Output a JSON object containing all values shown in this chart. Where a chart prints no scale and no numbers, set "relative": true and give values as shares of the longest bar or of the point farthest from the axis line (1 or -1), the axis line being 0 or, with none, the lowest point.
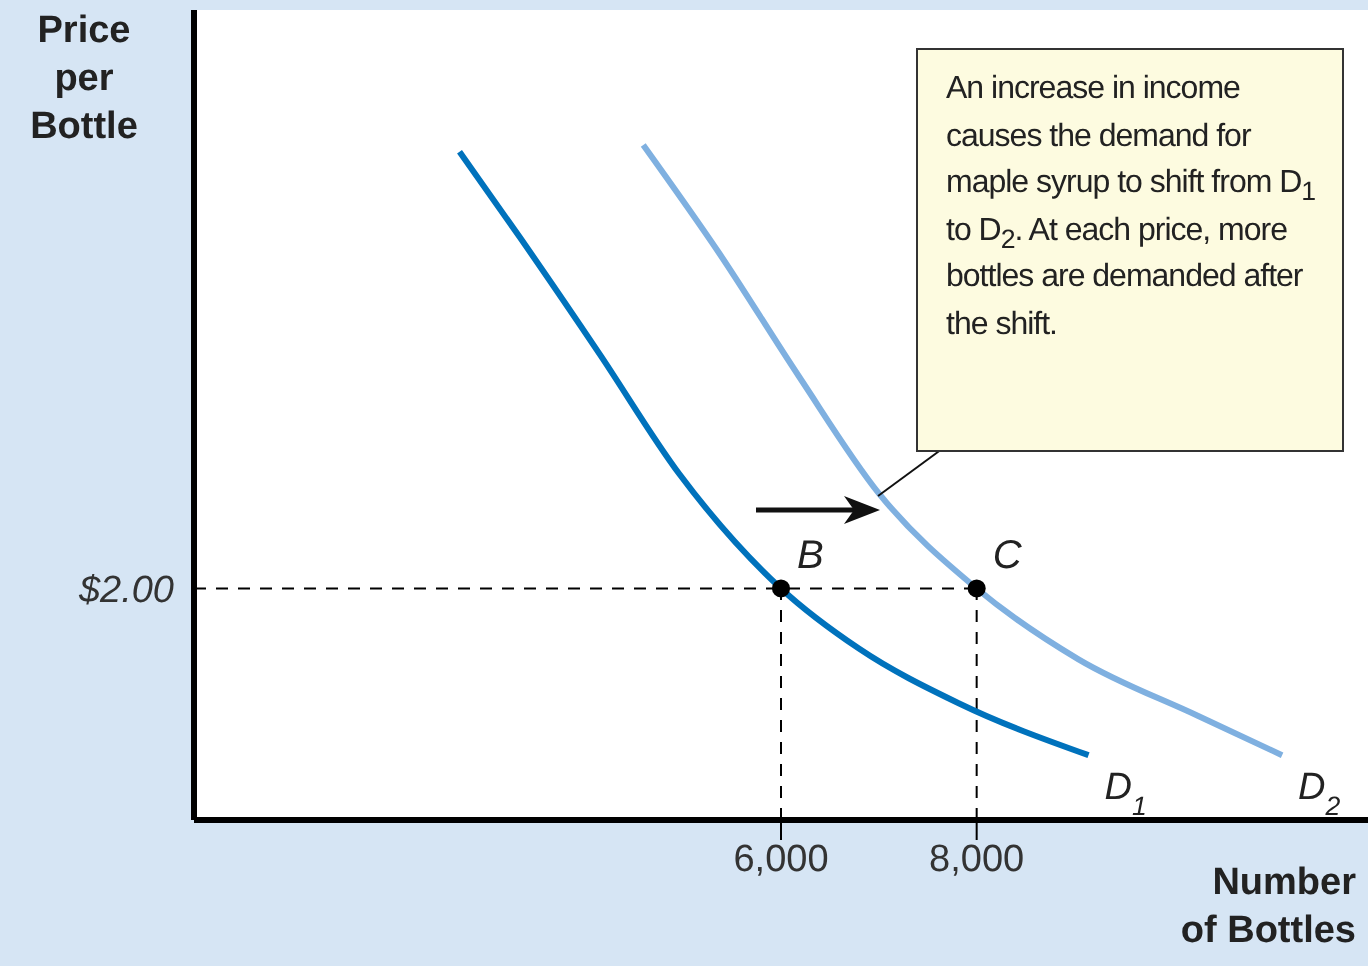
{
  "chart_data": {
    "type": "line",
    "xlabel": "Number of Bottles",
    "ylabel": "Price per Bottle",
    "relative": true,
    "xlim": [
      0,
      12000
    ],
    "xticks": [
      {
        "value": 6000,
        "label": "6,000"
      },
      {
        "value": 8000,
        "label": "8,000"
      }
    ],
    "series": [
      {
        "name": "D$_{1}$",
        "color": "#0072bc",
        "x": [
          2714,
          3327,
          4143,
          4959,
          6000,
          6796,
          7816,
          9143
        ],
        "values": [
          0.99,
          0.864,
          0.691,
          0.513,
          0.343,
          0.254,
          0.173,
          0.096
        ]
      },
      {
        "name": "D$_{2}$",
        "color": "#7fb0e0",
        "x": [
          4592,
          5367,
          6184,
          7000,
          8000,
          9041,
          10265,
          11122
        ],
        "values": [
          1,
          0.84,
          0.657,
          0.484,
          0.343,
          0.238,
          0.154,
          0.096
        ]
      },
      {
        "type": "scatter",
        "marker": "circle",
        "color": "#000000",
        "x": [
          6000,
          8000
        ],
        "values": [
          0.343,
          0.343
        ]
      }
    ],
    "ref_lines": [
      {
        "axis": "y",
        "value": 0.343,
        "line_style": "dashed"
      },
      {
        "axis": "x",
        "value": 6000,
        "line_style": "dashed"
      },
      {
        "axis": "x",
        "value": 8000,
        "line_style": "dashed"
      }
    ],
    "annotations": [
      "$2.00",
      {
        "text": "B",
        "x": 6000,
        "y": 0.343
      },
      {
        "text": "C",
        "x": 8000,
        "y": 0.343
      },
      "An increase in income causes the demand for maple syrup to shift from D$_{1}$ to D$_{2}$. At each price, more bottles are demanded after the shift."
    ],
    "line_style": "solid",
    "grid": false
  }
}
